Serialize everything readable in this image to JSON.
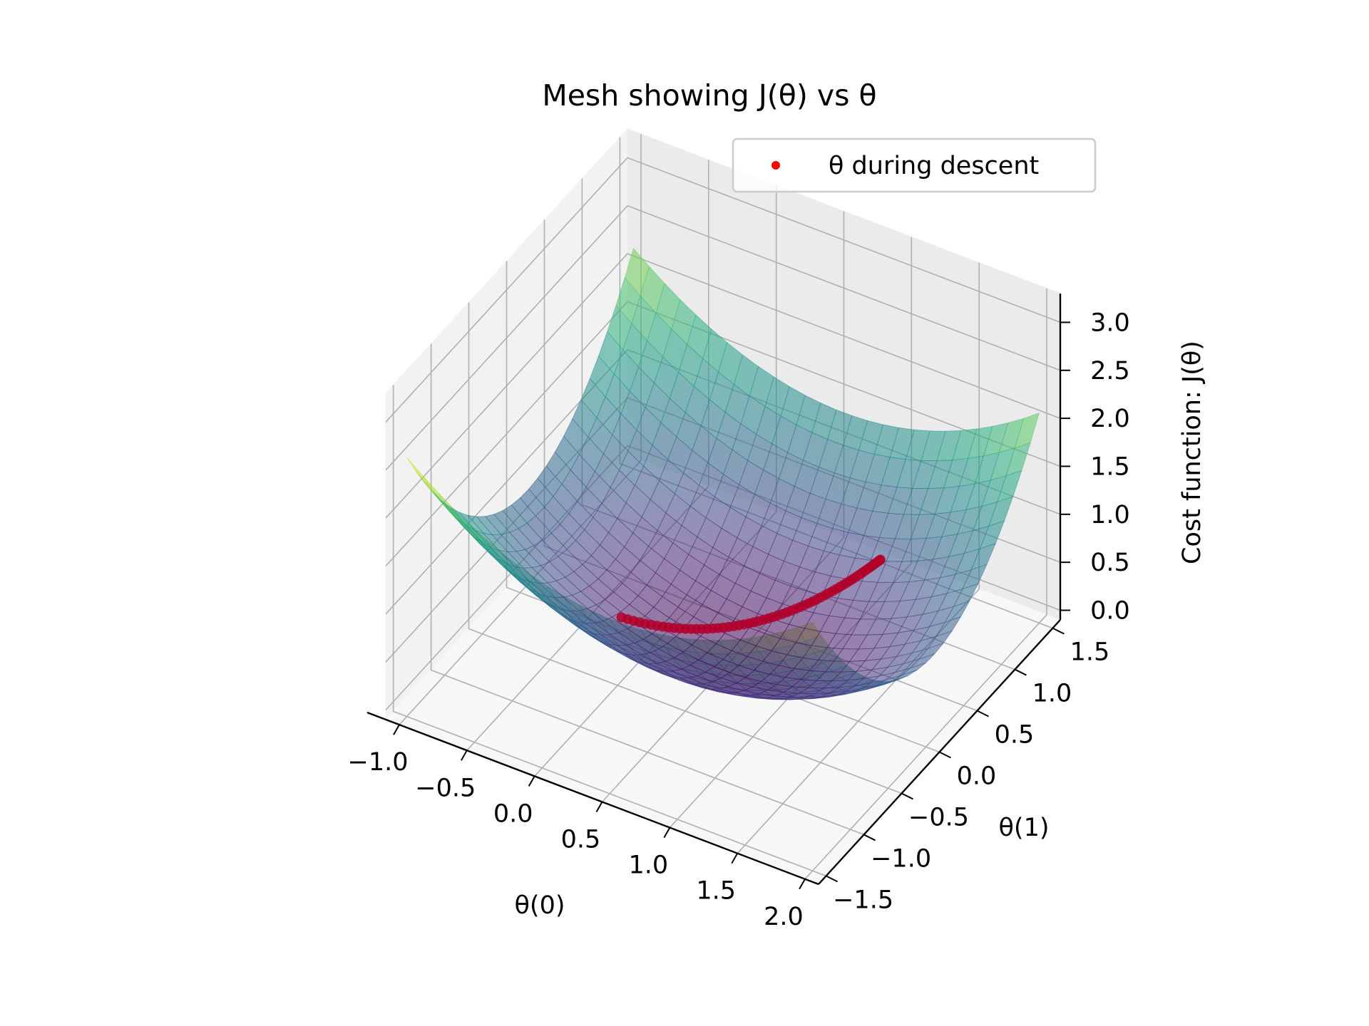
{
  "chart_data": {
    "type": "surface3d",
    "title": "Mesh showing J(θ) vs θ",
    "xlabel": "θ(0)",
    "ylabel": "θ(1)",
    "zlabel": "Cost function: J(θ)",
    "x_ticks": [
      "−1.0",
      "−0.5",
      "0.0",
      "0.5",
      "1.0",
      "1.5",
      "2.0"
    ],
    "y_ticks": [
      "−1.5",
      "−1.0",
      "−0.5",
      "0.0",
      "0.5",
      "1.0",
      "1.5"
    ],
    "z_ticks": [
      "0.0",
      "0.5",
      "1.0",
      "1.5",
      "2.0",
      "2.5",
      "3.0"
    ],
    "xlim": [
      -1.1,
      2.1
    ],
    "ylim": [
      -1.6,
      1.6
    ],
    "zlim": [
      -0.1,
      3.3
    ],
    "colormap": "viridis",
    "surface_alpha": 0.55,
    "grid": true,
    "legend": {
      "position": "top-right",
      "label": "θ during descent",
      "marker_color": "#ff0000"
    },
    "descent_path": {
      "color": "#b0002a",
      "start": {
        "x": -0.15,
        "y": -0.18
      },
      "end": {
        "x": 1.15,
        "y": 0.92
      }
    }
  }
}
